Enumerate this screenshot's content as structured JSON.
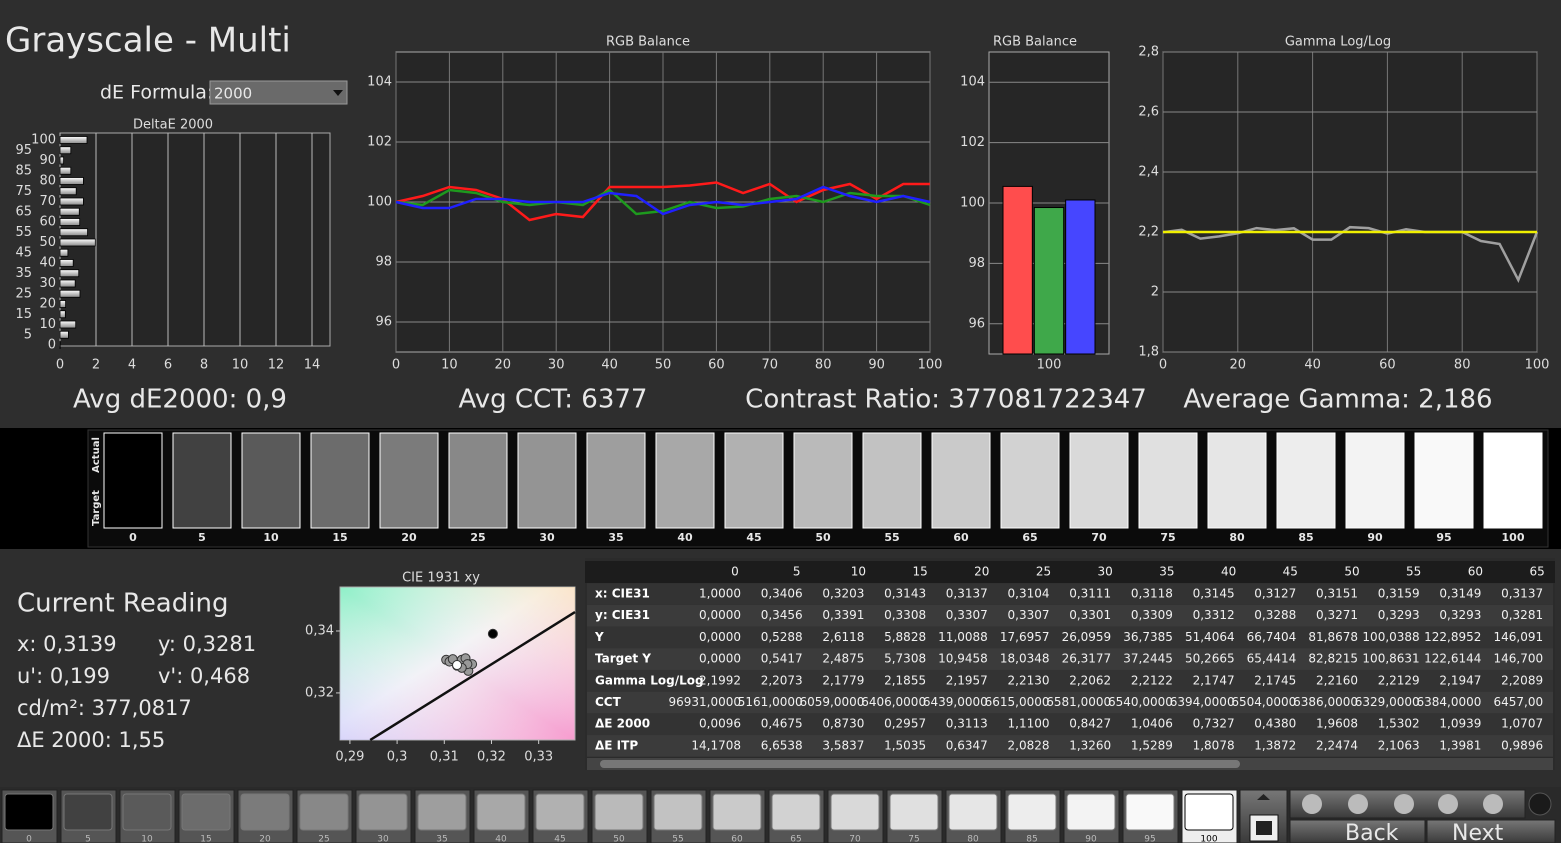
{
  "header": {
    "title": "Grayscale - Multi",
    "formula_label": "dE Formula:",
    "formula_value": "2000"
  },
  "stats": [
    "Avg dE2000: 0,9",
    "Avg CCT: 6377",
    "Contrast Ratio: 377081722347",
    "Average Gamma: 2,186"
  ],
  "chart_data": [
    {
      "type": "barh",
      "title": "DeltaE 2000",
      "categories": [
        0,
        5,
        10,
        15,
        20,
        25,
        30,
        35,
        40,
        45,
        50,
        55,
        60,
        65,
        70,
        75,
        80,
        85,
        90,
        95,
        100
      ],
      "values": [
        0.0096,
        0.4675,
        0.873,
        0.2957,
        0.3113,
        1.11,
        0.8427,
        1.0406,
        0.7327,
        0.438,
        1.9608,
        1.5302,
        1.0939,
        1.0707,
        1.3,
        0.9,
        1.3,
        0.6,
        0.2,
        0.6,
        1.5
      ],
      "xlim": [
        0,
        15
      ],
      "xticks": [
        0,
        2,
        4,
        6,
        8,
        10,
        12,
        14
      ],
      "grid": true
    },
    {
      "type": "line",
      "title": "RGB Balance",
      "x": [
        0,
        5,
        10,
        15,
        20,
        25,
        30,
        35,
        40,
        45,
        50,
        55,
        60,
        65,
        70,
        75,
        80,
        85,
        90,
        95,
        100
      ],
      "series": [
        {
          "color": "#ff1a1a",
          "values": [
            100.0,
            100.2,
            100.5,
            100.4,
            100.1,
            99.4,
            99.6,
            99.5,
            100.5,
            100.5,
            100.5,
            100.55,
            100.65,
            100.3,
            100.6,
            100.0,
            100.4,
            100.6,
            100.1,
            100.6,
            100.6
          ]
        },
        {
          "color": "#1e9a1e",
          "values": [
            100.0,
            99.9,
            100.4,
            100.3,
            100.0,
            99.9,
            100.0,
            99.9,
            100.4,
            99.6,
            99.7,
            100.0,
            99.8,
            99.85,
            100.1,
            100.2,
            100.0,
            100.3,
            100.2,
            100.2,
            99.9
          ]
        },
        {
          "color": "#2020ff",
          "values": [
            100.0,
            99.8,
            99.8,
            100.1,
            100.1,
            100.0,
            100.0,
            100.0,
            100.3,
            100.2,
            99.6,
            99.9,
            100.0,
            99.9,
            100.0,
            100.1,
            100.5,
            100.2,
            100.0,
            100.2,
            100.0
          ]
        }
      ],
      "xlim": [
        0,
        100
      ],
      "xticks": [
        0,
        10,
        20,
        30,
        40,
        50,
        60,
        70,
        80,
        90,
        100
      ],
      "ylim": [
        95,
        105
      ],
      "yticks": [
        96,
        98,
        100,
        102,
        104
      ],
      "grid": true
    },
    {
      "type": "bar",
      "title": "RGB Balance",
      "categories": [
        100
      ],
      "series": [
        {
          "color": "#ff4d4d",
          "values": [
            100.55
          ]
        },
        {
          "color": "#3fa84a",
          "values": [
            99.85
          ]
        },
        {
          "color": "#4646ff",
          "values": [
            100.1
          ]
        }
      ],
      "ylim": [
        95,
        105
      ],
      "yticks": [
        96,
        98,
        100,
        102,
        104
      ],
      "grid": true
    },
    {
      "type": "line",
      "title": "Gamma Log/Log",
      "x": [
        0,
        5,
        10,
        15,
        20,
        25,
        30,
        35,
        40,
        45,
        50,
        55,
        60,
        65,
        70,
        75,
        80,
        85,
        90,
        95,
        100
      ],
      "series": [
        {
          "color": "#a0a0a0",
          "values": [
            2.1992,
            2.2073,
            2.1779,
            2.1855,
            2.1957,
            2.213,
            2.2062,
            2.2122,
            2.1747,
            2.1745,
            2.216,
            2.2129,
            2.1947,
            2.2089,
            2.2,
            2.2,
            2.2,
            2.17,
            2.16,
            2.04,
            2.2
          ]
        },
        {
          "color": "#f0f000",
          "values": [
            2.2,
            2.2,
            2.2,
            2.2,
            2.2,
            2.2,
            2.2,
            2.2,
            2.2,
            2.2,
            2.2,
            2.2,
            2.2,
            2.2,
            2.2,
            2.2,
            2.2,
            2.2,
            2.2,
            2.2,
            2.2
          ]
        }
      ],
      "xlim": [
        0,
        100
      ],
      "xticks": [
        0,
        20,
        40,
        60,
        80,
        100
      ],
      "ylim": [
        1.8,
        2.8
      ],
      "yticks": [
        {
          "value": 1.8,
          "label": "1,8"
        },
        2,
        {
          "value": 2.2,
          "label": "2,2"
        },
        {
          "value": 2.4,
          "label": "2,4"
        },
        {
          "value": 2.6,
          "label": "2,6"
        },
        {
          "value": 2.8,
          "label": "2,8"
        }
      ],
      "grid": true
    },
    {
      "type": "scatter",
      "title": "CIE 1931 xy",
      "series": [
        {
          "color": "#999999",
          "x": [
            0.3143,
            0.3137,
            0.3104,
            0.3111,
            0.3118,
            0.3145,
            0.3127,
            0.3151,
            0.3159,
            0.3149,
            0.3137
          ],
          "y": [
            0.3308,
            0.3307,
            0.3307,
            0.3301,
            0.3309,
            0.3312,
            0.3288,
            0.3271,
            0.3293,
            0.3293,
            0.3281
          ]
        },
        {
          "color": "#000000",
          "x": [
            0.3203
          ],
          "y": [
            0.3391
          ]
        },
        {
          "color": "#ffffff",
          "x": [
            0.3127
          ],
          "y": [
            0.329
          ]
        }
      ],
      "locus": {
        "x": [
          0.2943,
          0.3377
        ],
        "y": [
          0.3048,
          0.3461
        ]
      },
      "xlim": [
        0.2879,
        0.3377
      ],
      "xticks": [
        {
          "value": 0.29,
          "label": "0,29"
        },
        {
          "value": 0.3,
          "label": "0,3"
        },
        {
          "value": 0.31,
          "label": "0,31"
        },
        {
          "value": 0.32,
          "label": "0,32"
        },
        {
          "value": 0.33,
          "label": "0,33"
        }
      ],
      "ylim": [
        0.3048,
        0.3542
      ],
      "yticks": [
        {
          "value": 0.32,
          "label": "0,32"
        },
        {
          "value": 0.34,
          "label": "0,34"
        }
      ]
    }
  ],
  "swatches": {
    "row_labels": [
      "Actual",
      "Target"
    ],
    "levels": [
      0,
      5,
      10,
      15,
      20,
      25,
      30,
      35,
      40,
      45,
      50,
      55,
      60,
      65,
      70,
      75,
      80,
      85,
      90,
      95,
      100
    ]
  },
  "current_reading": {
    "title": "Current Reading",
    "lines": [
      "x: 0,3139",
      "y: 0,3281",
      "u': 0,199",
      "v': 0,468",
      "cd/m²: 377,0817",
      "ΔE 2000: 1,55"
    ]
  },
  "table": {
    "columns": [
      0,
      5,
      10,
      15,
      20,
      25,
      30,
      35,
      40,
      45,
      50,
      55,
      60,
      65
    ],
    "rows": [
      {
        "label": "x: CIE31",
        "cells": [
          "1,0000",
          "0,3406",
          "0,3203",
          "0,3143",
          "0,3137",
          "0,3104",
          "0,3111",
          "0,3118",
          "0,3145",
          "0,3127",
          "0,3151",
          "0,3159",
          "0,3149",
          "0,3137"
        ]
      },
      {
        "label": "y: CIE31",
        "cells": [
          "0,0000",
          "0,3456",
          "0,3391",
          "0,3308",
          "0,3307",
          "0,3307",
          "0,3301",
          "0,3309",
          "0,3312",
          "0,3288",
          "0,3271",
          "0,3293",
          "0,3293",
          "0,3281"
        ]
      },
      {
        "label": "Y",
        "cells": [
          "0,0000",
          "0,5288",
          "2,6118",
          "5,8828",
          "11,0088",
          "17,6957",
          "26,0959",
          "36,7385",
          "51,4064",
          "66,7404",
          "81,8678",
          "100,0388",
          "122,8952",
          "146,091"
        ]
      },
      {
        "label": "Target Y",
        "cells": [
          "0,0000",
          "0,5417",
          "2,4875",
          "5,7308",
          "10,9458",
          "18,0348",
          "26,3177",
          "37,2445",
          "50,2665",
          "65,4414",
          "82,8215",
          "100,8631",
          "122,6144",
          "146,700"
        ]
      },
      {
        "label": "Gamma Log/Log",
        "cells": [
          "2,1992",
          "2,2073",
          "2,1779",
          "2,1855",
          "2,1957",
          "2,2130",
          "2,2062",
          "2,2122",
          "2,1747",
          "2,1745",
          "2,2160",
          "2,2129",
          "2,1947",
          "2,2089"
        ]
      },
      {
        "label": "CCT",
        "cells": [
          "96931,0000",
          "5161,0000",
          "6059,0000",
          "6406,0000",
          "6439,0000",
          "6615,0000",
          "6581,0000",
          "6540,0000",
          "6394,0000",
          "6504,0000",
          "6386,0000",
          "6329,0000",
          "6384,0000",
          "6457,00"
        ]
      },
      {
        "label": "ΔE 2000",
        "cells": [
          "0,0096",
          "0,4675",
          "0,8730",
          "0,2957",
          "0,3113",
          "1,1100",
          "0,8427",
          "1,0406",
          "0,7327",
          "0,4380",
          "1,9608",
          "1,5302",
          "1,0939",
          "1,0707"
        ]
      },
      {
        "label": "ΔE ITP",
        "cells": [
          "14,1708",
          "6,6538",
          "3,5837",
          "1,5035",
          "0,6347",
          "2,0828",
          "1,3260",
          "1,5289",
          "1,8078",
          "1,3872",
          "2,2474",
          "2,1063",
          "1,3981",
          "0,9896"
        ]
      }
    ]
  },
  "bottom": {
    "levels": [
      0,
      5,
      10,
      15,
      20,
      25,
      30,
      35,
      40,
      45,
      50,
      55,
      60,
      65,
      70,
      75,
      80,
      85,
      90,
      95,
      100
    ],
    "back": "Back",
    "next": "Next"
  }
}
